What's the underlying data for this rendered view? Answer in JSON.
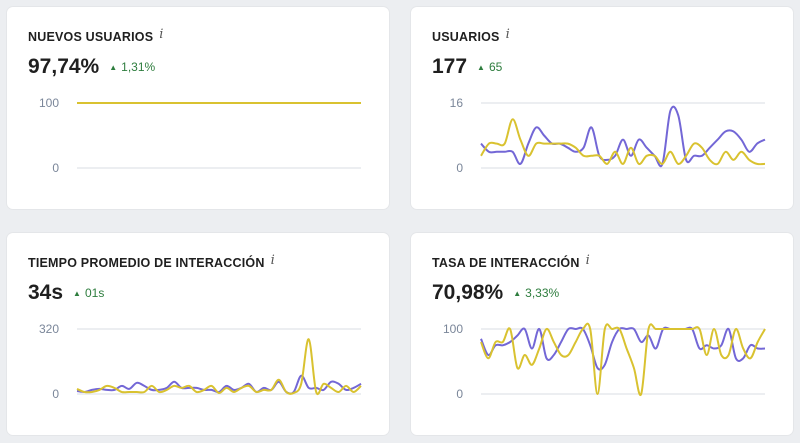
{
  "colors": {
    "series_a": "#7367d6",
    "series_b": "#d9c230",
    "positive": "#2e7d3e"
  },
  "cards": [
    {
      "title": "NUEVOS USUARIOS",
      "info_icon": "info-icon",
      "value": "97,74%",
      "delta": "1,31%",
      "delta_direction": "up"
    },
    {
      "title": "USUARIOS",
      "info_icon": "info-icon",
      "value": "177",
      "delta": "65",
      "delta_direction": "up"
    },
    {
      "title": "TIEMPO PROMEDIO DE INTERACCIÓN",
      "info_icon": "info-icon",
      "value": "34s",
      "delta": "01s",
      "delta_direction": "up"
    },
    {
      "title": "TASA DE INTERACCIÓN",
      "info_icon": "info-icon",
      "value": "70,98%",
      "delta": "3,33%",
      "delta_direction": "up"
    }
  ],
  "chart_data": [
    {
      "type": "line",
      "ylim": [
        0,
        100
      ],
      "yticks": [
        "100",
        "0"
      ],
      "grid": true,
      "series": [
        {
          "values": [
            100,
            100,
            100,
            100,
            100,
            100,
            100,
            100,
            100,
            100,
            100,
            100,
            100,
            100,
            100,
            100,
            100,
            100,
            100,
            100,
            100,
            100,
            100,
            100,
            100,
            100,
            100,
            100,
            100,
            100,
            100,
            100,
            100,
            100,
            100,
            100,
            100,
            100,
            100,
            100,
            100,
            100,
            100,
            100,
            100,
            100,
            100,
            100,
            100,
            100,
            100,
            100,
            100,
            100,
            100,
            100,
            100,
            100,
            100,
            100,
            100,
            100,
            100,
            100,
            100,
            100,
            100,
            100,
            100,
            100,
            100,
            100,
            100,
            100,
            100,
            100,
            100,
            100,
            100,
            100,
            100,
            100,
            100,
            100,
            100,
            100,
            100,
            100,
            100,
            100
          ]
        },
        {
          "values": [
            100,
            100,
            100,
            100,
            100,
            100,
            100,
            100,
            100,
            100,
            100,
            100,
            100,
            100,
            100,
            100,
            100,
            100,
            100,
            100,
            100,
            100,
            100,
            100,
            100,
            100,
            100,
            100,
            100,
            100,
            100,
            100,
            100,
            100,
            100,
            100,
            100,
            100,
            100,
            100,
            100,
            100,
            100,
            100,
            100,
            100,
            100,
            100,
            100,
            100,
            100,
            100,
            100,
            100,
            100,
            100,
            100,
            100,
            100,
            100,
            100,
            100,
            100,
            100,
            100,
            100,
            100,
            100,
            100,
            100,
            100,
            100,
            100,
            100,
            100,
            100,
            100,
            100,
            100,
            100,
            100,
            100,
            100,
            100,
            100,
            100,
            100,
            100,
            100,
            100
          ]
        }
      ]
    },
    {
      "type": "line",
      "ylim": [
        0,
        16
      ],
      "yticks": [
        "16",
        "0"
      ],
      "grid": true,
      "series": [
        {
          "values": [
            6,
            4,
            4,
            4,
            4,
            1,
            6,
            10,
            8,
            6,
            6,
            5,
            4,
            5,
            10,
            3,
            2,
            3,
            7,
            3,
            7,
            5,
            3,
            1,
            14,
            13,
            2,
            3,
            3,
            5,
            7,
            9,
            9,
            7,
            4,
            6,
            7
          ]
        },
        {
          "values": [
            3,
            6,
            6,
            6,
            12,
            7,
            3,
            6,
            6,
            6,
            6,
            6,
            5,
            3,
            3,
            3,
            1,
            4,
            1,
            5,
            1,
            3,
            3,
            1,
            4,
            1,
            3,
            6,
            5,
            2,
            1,
            4,
            2,
            4,
            2,
            1,
            1
          ]
        }
      ]
    },
    {
      "type": "line",
      "ylim": [
        0,
        320
      ],
      "yticks": [
        "320",
        "0"
      ],
      "grid": true,
      "series": [
        {
          "values": [
            15,
            10,
            20,
            25,
            20,
            20,
            40,
            25,
            55,
            40,
            20,
            20,
            30,
            60,
            30,
            30,
            30,
            20,
            20,
            10,
            40,
            20,
            30,
            50,
            10,
            30,
            20,
            60,
            10,
            10,
            90,
            30,
            30,
            20,
            60,
            50,
            20,
            30,
            50
          ]
        },
        {
          "values": [
            25,
            10,
            10,
            20,
            40,
            30,
            10,
            10,
            10,
            10,
            40,
            10,
            20,
            40,
            30,
            40,
            10,
            20,
            40,
            5,
            30,
            10,
            30,
            40,
            10,
            20,
            20,
            70,
            10,
            5,
            50,
            270,
            10,
            50,
            30,
            10,
            40,
            10,
            40
          ]
        }
      ]
    },
    {
      "type": "line",
      "ylim": [
        0,
        100
      ],
      "yticks": [
        "100",
        "0"
      ],
      "grid": true,
      "series": [
        {
          "values": [
            85,
            60,
            75,
            75,
            80,
            90,
            100,
            70,
            100,
            55,
            60,
            80,
            100,
            100,
            100,
            75,
            40,
            45,
            80,
            100,
            100,
            100,
            80,
            90,
            70,
            100,
            100,
            100,
            100,
            100,
            70,
            75,
            70,
            75,
            100,
            55,
            55,
            75,
            70,
            70
          ]
        },
        {
          "values": [
            80,
            55,
            80,
            80,
            100,
            40,
            60,
            45,
            70,
            100,
            80,
            60,
            60,
            80,
            100,
            100,
            0,
            100,
            100,
            100,
            70,
            40,
            0,
            100,
            100,
            100,
            100,
            100,
            100,
            100,
            100,
            60,
            100,
            60,
            60,
            100,
            70,
            55,
            80,
            100
          ]
        }
      ]
    }
  ]
}
